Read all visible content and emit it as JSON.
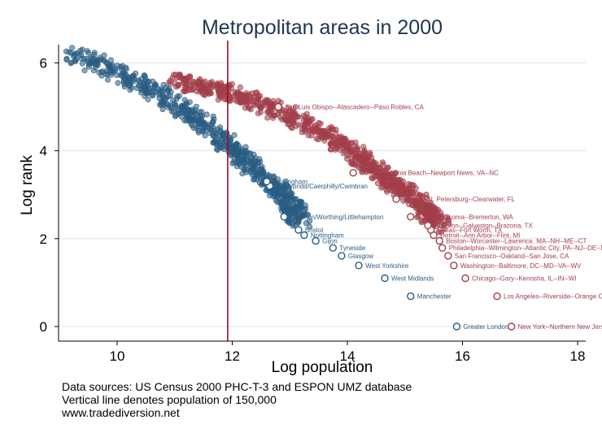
{
  "chart_data": {
    "type": "scatter",
    "title": "Metropolitan areas in 2000",
    "xlabel": "Log population",
    "ylabel": "Log rank",
    "xlim": [
      9,
      18.2
    ],
    "ylim": [
      -0.25,
      6.5
    ],
    "x_ticks": [
      10,
      12,
      14,
      16,
      18
    ],
    "y_ticks": [
      0,
      2,
      4,
      6
    ],
    "grid": true,
    "reference_line": {
      "x": 11.92
    },
    "colors": {
      "europe": "#2a5d84",
      "us": "#a23e4a",
      "reference_line": "#9a0f2a",
      "title": "#1f3552",
      "grid": "#dfe6ec",
      "text": "#000000"
    },
    "series": [
      {
        "group": "europe",
        "cloud_segments": [
          [
            9.2,
            6.25
          ],
          [
            10.5,
            5.45
          ],
          [
            11.5,
            4.65
          ],
          [
            12.2,
            3.8
          ],
          [
            12.85,
            3.05
          ],
          [
            13.2,
            2.4
          ]
        ],
        "labeled_points": [
          {
            "name": "Greater London",
            "x": 15.9,
            "y": 0.0
          },
          {
            "name": "Manchester",
            "x": 15.1,
            "y": 0.69
          },
          {
            "name": "West Midlands",
            "x": 14.65,
            "y": 1.1
          },
          {
            "name": "West Yorkshire",
            "x": 14.2,
            "y": 1.39
          },
          {
            "name": "Glasgow",
            "x": 13.9,
            "y": 1.61
          },
          {
            "name": "Tyneside",
            "x": 13.75,
            "y": 1.79
          },
          {
            "name": "Gijon",
            "x": 13.45,
            "y": 1.95
          },
          {
            "name": "Nottingham",
            "x": 13.25,
            "y": 2.08
          },
          {
            "name": "Bristol",
            "x": 13.15,
            "y": 2.2
          },
          {
            "name": "Brighton/Worthing/Littlehampton",
            "x": 12.9,
            "y": 2.5
          },
          {
            "name": "Pontypridd/Caerphilly/Cwmbran",
            "x": 12.65,
            "y": 3.2
          },
          {
            "name": "Wokingham",
            "x": 12.6,
            "y": 3.3
          }
        ]
      },
      {
        "group": "us",
        "cloud_segments": [
          [
            11.0,
            5.6
          ],
          [
            12.0,
            5.3
          ],
          [
            13.0,
            4.8
          ],
          [
            14.0,
            4.1
          ],
          [
            14.6,
            3.4
          ],
          [
            15.2,
            2.9
          ],
          [
            15.6,
            2.3
          ]
        ],
        "labeled_points": [
          {
            "name": "New York--Northern New Jersey",
            "x": 16.85,
            "y": 0.0
          },
          {
            "name": "Los Angeles--Riverside--Orange County",
            "x": 16.6,
            "y": 0.69
          },
          {
            "name": "Chicago--Gary--Kenosha, IL--IN--WI",
            "x": 16.05,
            "y": 1.1
          },
          {
            "name": "Washington--Baltimore, DC--MD--VA--WV",
            "x": 15.85,
            "y": 1.39
          },
          {
            "name": "San Francisco--Oakland--San Jose, CA",
            "x": 15.75,
            "y": 1.61
          },
          {
            "name": "Philadelphia--Wilmington--Atlantic City, PA--NJ--DE--MD",
            "x": 15.65,
            "y": 1.79
          },
          {
            "name": "Boston--Worcester--Lawrence, MA--NH--ME--CT",
            "x": 15.6,
            "y": 1.95
          },
          {
            "name": "Detroit--Ann Arbor--Flint, MI",
            "x": 15.5,
            "y": 2.08
          },
          {
            "name": "Dallas--Fort Worth, TX",
            "x": 15.45,
            "y": 2.2
          },
          {
            "name": "Houston--Galveston--Brazoria, TX",
            "x": 15.4,
            "y": 2.3
          },
          {
            "name": "Seattle--Tacoma--Bremerton, WA",
            "x": 15.1,
            "y": 2.5
          },
          {
            "name": "Tampa--St. Petersburg--Clearwater, FL",
            "x": 14.85,
            "y": 2.9
          },
          {
            "name": "Norfolk--Virginia Beach--Newport News, VA--NC",
            "x": 14.1,
            "y": 3.5
          },
          {
            "name": "San Luis Obispo--Atascadero--Paso Robles, CA",
            "x": 12.8,
            "y": 5.0
          }
        ]
      }
    ]
  },
  "sources_note": "Data sources: US Census 2000 PHC-T-3 and ESPON UMZ database",
  "line_note": "Vertical line denotes population of 150,000",
  "website": "www.tradediversion.net"
}
